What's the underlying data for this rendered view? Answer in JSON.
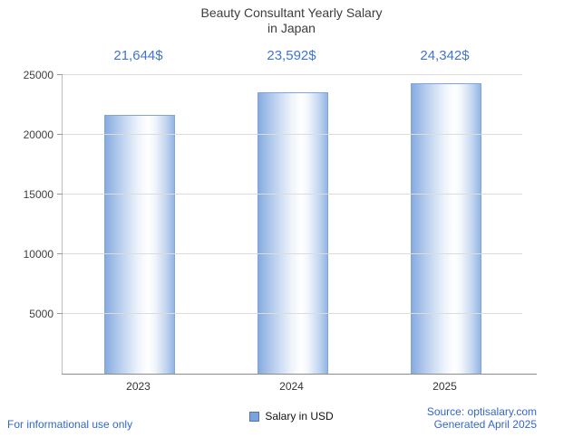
{
  "title": {
    "line1": "Beauty Consultant Yearly Salary",
    "line2": "in Japan"
  },
  "chart_data": {
    "type": "bar",
    "title": "Beauty Consultant Yearly Salary in Japan",
    "categories": [
      "2023",
      "2024",
      "2025"
    ],
    "values": [
      21644,
      23592,
      24342
    ],
    "value_labels": [
      "21,644$",
      "23,592$",
      "24,342$"
    ],
    "xlabel": "",
    "ylabel": "",
    "ylim": [
      0,
      25000
    ],
    "yticks": [
      5000,
      10000,
      15000,
      20000,
      25000
    ],
    "grid": true,
    "legend_label": "Salary in USD",
    "legend_position": "bottom",
    "bar_color_edge": "#86abe0",
    "bar_color_center": "#ffffff",
    "value_label_color": "#4273cf"
  },
  "footer": {
    "left": "For informational use only",
    "source": "Source: optisalary.com",
    "generated": "Generated April 2025"
  },
  "colors": {
    "accent_blue": "#3366cc",
    "axis_gray": "#8c8c8c",
    "grid_gray": "#dcdcdc"
  }
}
